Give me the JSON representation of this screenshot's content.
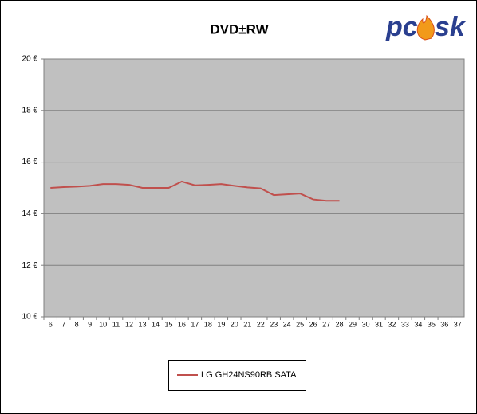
{
  "chart_data": {
    "type": "line",
    "title": "DVD±RW",
    "logo": [
      "pc",
      "sk"
    ],
    "categories": [
      "6",
      "7",
      "8",
      "9",
      "10",
      "11",
      "12",
      "13",
      "14",
      "15",
      "16",
      "17",
      "18",
      "19",
      "20",
      "21",
      "22",
      "23",
      "24",
      "25",
      "26",
      "27",
      "28",
      "29",
      "30",
      "31",
      "32",
      "33",
      "34",
      "35",
      "36",
      "37"
    ],
    "series": [
      {
        "name": "LG GH24NS90RB SATA",
        "color": "#c0504d",
        "values": [
          15.0,
          15.03,
          15.05,
          15.08,
          15.15,
          15.15,
          15.12,
          15.0,
          15.0,
          15.0,
          15.25,
          15.1,
          15.12,
          15.15,
          15.08,
          15.02,
          14.98,
          14.72,
          14.75,
          14.78,
          14.55,
          14.5,
          14.5,
          null,
          null,
          null,
          null,
          null,
          null,
          null,
          null,
          null
        ]
      }
    ],
    "ylim": [
      10,
      20
    ],
    "yticks": [
      {
        "value": 10,
        "label": "10 €"
      },
      {
        "value": 12,
        "label": "12 €"
      },
      {
        "value": 14,
        "label": "14 €"
      },
      {
        "value": 16,
        "label": "16 €"
      },
      {
        "value": 18,
        "label": "18 €"
      },
      {
        "value": 20,
        "label": "20 €"
      }
    ],
    "grid": true,
    "legend": "bottom"
  }
}
